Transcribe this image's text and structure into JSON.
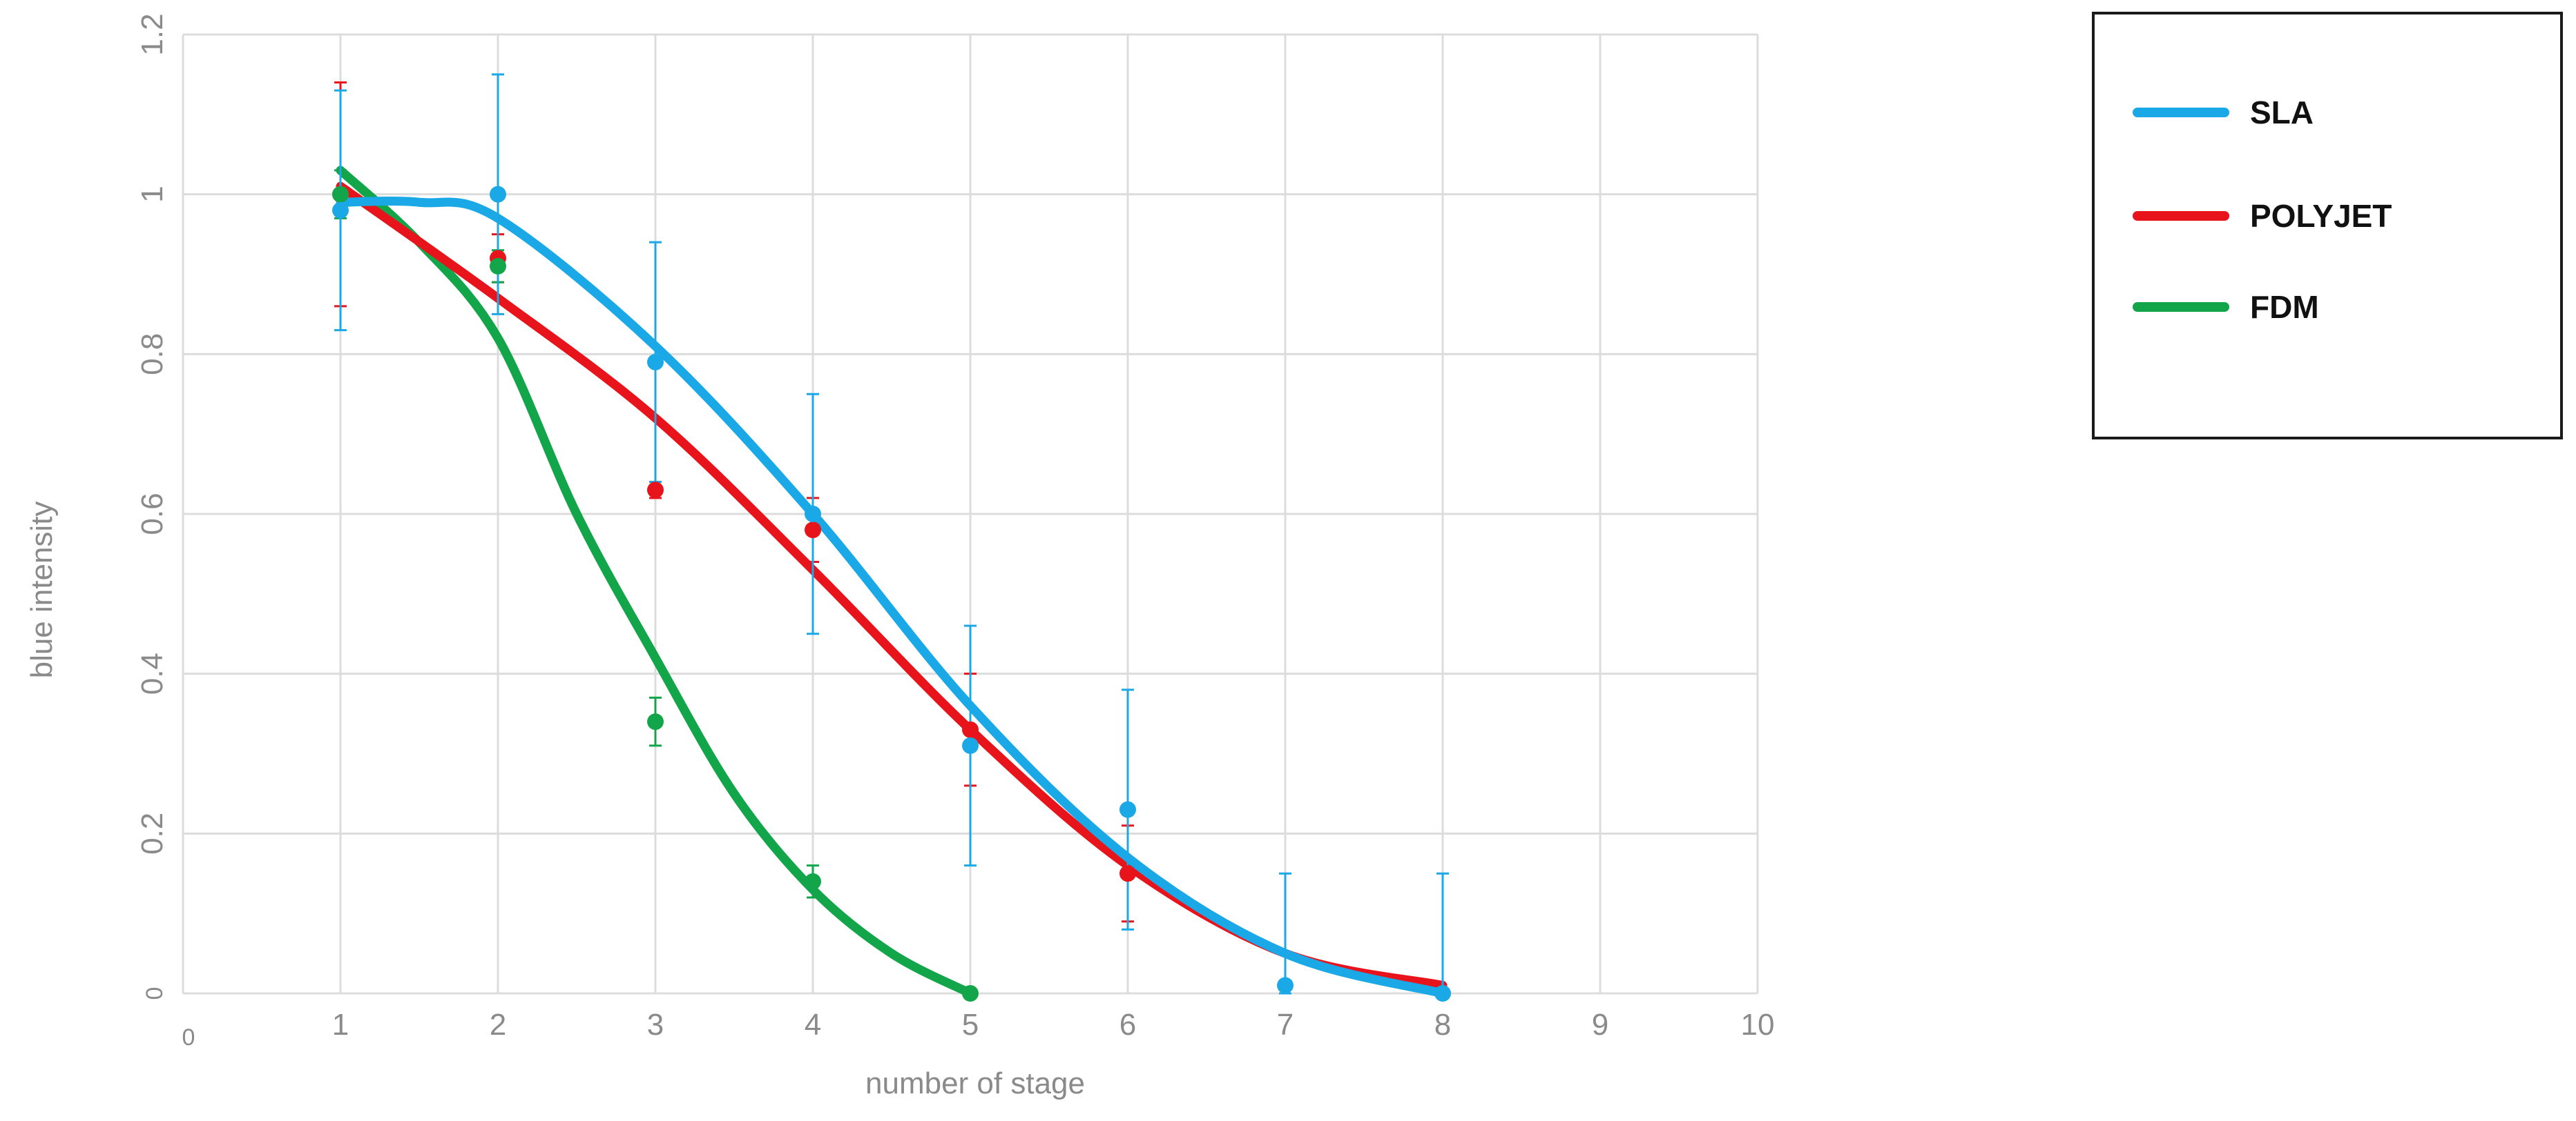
{
  "chart_data": {
    "type": "line",
    "title": "",
    "xlabel": "number of stage",
    "ylabel": "blue intensity",
    "xlim": [
      0,
      10
    ],
    "ylim": [
      0,
      1.2
    ],
    "xticks": [
      "0",
      "1",
      "2",
      "3",
      "4",
      "5",
      "6",
      "7",
      "8",
      "9",
      "10"
    ],
    "yticks": [
      "0",
      "0.2",
      "0.4",
      "0.6",
      "0.8",
      "1",
      "1.2"
    ],
    "grid": true,
    "legend_position": "top-right-outside",
    "series": [
      {
        "name": "SLA",
        "color": "#1aa8e6",
        "points": [
          {
            "x": 1,
            "y": 0.98,
            "err": 0.15
          },
          {
            "x": 2,
            "y": 1.0,
            "err": 0.15
          },
          {
            "x": 3,
            "y": 0.79,
            "err": 0.15
          },
          {
            "x": 4,
            "y": 0.6,
            "err": 0.15
          },
          {
            "x": 5,
            "y": 0.31,
            "err": 0.15
          },
          {
            "x": 6,
            "y": 0.23,
            "err": 0.15
          },
          {
            "x": 7,
            "y": 0.01,
            "err": 0.14
          },
          {
            "x": 8,
            "y": 0.0,
            "err": 0.15
          }
        ],
        "fit": [
          [
            1,
            0.99
          ],
          [
            1.5,
            0.99
          ],
          [
            2,
            0.97
          ],
          [
            3,
            0.81
          ],
          [
            4,
            0.6
          ],
          [
            5,
            0.36
          ],
          [
            6,
            0.17
          ],
          [
            7,
            0.05
          ],
          [
            8,
            0.0
          ]
        ]
      },
      {
        "name": "POLYJET",
        "color": "#e8141b",
        "points": [
          {
            "x": 1,
            "y": 1.0,
            "err": 0.14
          },
          {
            "x": 2,
            "y": 0.92,
            "err": 0.03
          },
          {
            "x": 3,
            "y": 0.63,
            "err": 0.01
          },
          {
            "x": 4,
            "y": 0.58,
            "err": 0.04
          },
          {
            "x": 5,
            "y": 0.33,
            "err": 0.07
          },
          {
            "x": 6,
            "y": 0.15,
            "err": 0.06
          }
        ],
        "fit": [
          [
            1,
            1.01
          ],
          [
            2,
            0.87
          ],
          [
            3,
            0.72
          ],
          [
            4,
            0.53
          ],
          [
            5,
            0.33
          ],
          [
            6,
            0.16
          ],
          [
            7,
            0.05
          ],
          [
            8,
            0.01
          ]
        ]
      },
      {
        "name": "FDM",
        "color": "#13a54a",
        "points": [
          {
            "x": 1,
            "y": 1.0,
            "err": 0.03
          },
          {
            "x": 2,
            "y": 0.91,
            "err": 0.02
          },
          {
            "x": 3,
            "y": 0.34,
            "err": 0.03
          },
          {
            "x": 4,
            "y": 0.14,
            "err": 0.02
          },
          {
            "x": 5,
            "y": 0.0,
            "err": 0.0
          }
        ],
        "fit": [
          [
            1,
            1.03
          ],
          [
            1.5,
            0.94
          ],
          [
            2,
            0.82
          ],
          [
            2.5,
            0.6
          ],
          [
            3,
            0.42
          ],
          [
            3.5,
            0.25
          ],
          [
            4,
            0.13
          ],
          [
            4.5,
            0.05
          ],
          [
            5,
            0.0
          ]
        ]
      }
    ]
  }
}
